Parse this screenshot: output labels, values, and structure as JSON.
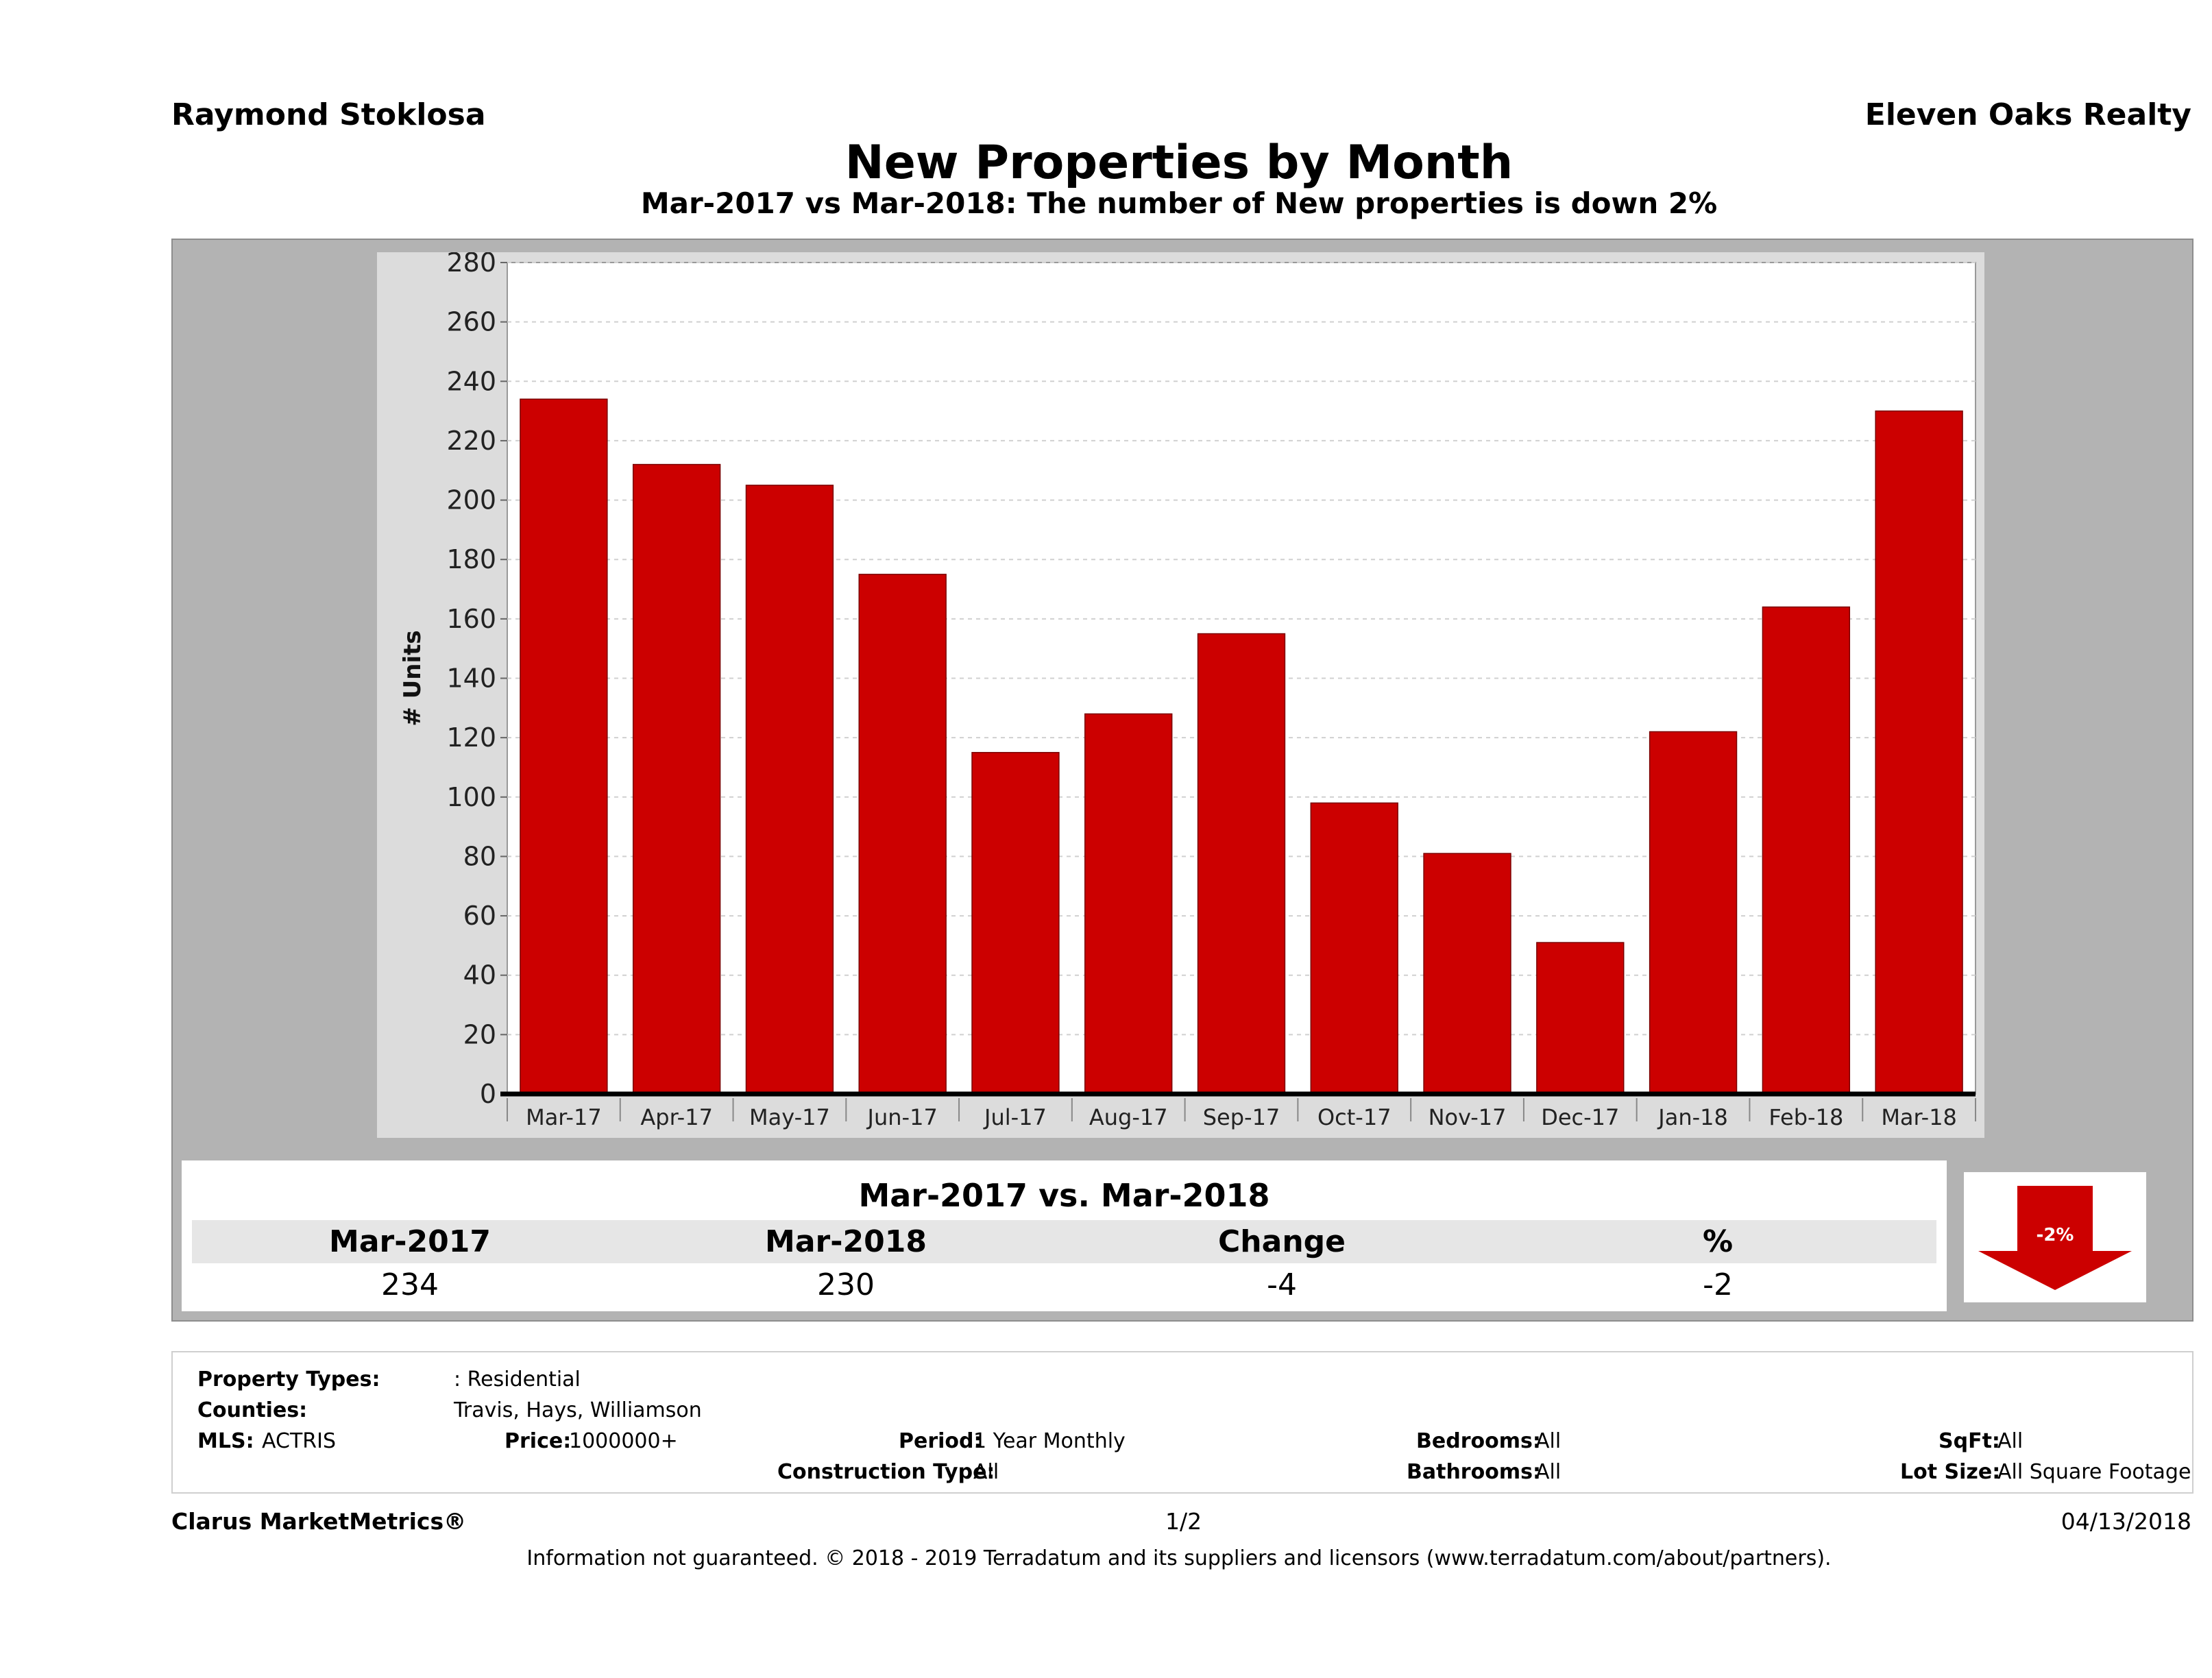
{
  "header": {
    "agent": "Raymond Stoklosa",
    "company": "Eleven Oaks Realty",
    "title": "New Properties by Month",
    "subtitle": "Mar-2017 vs Mar-2018: The number of New  properties is down 2%"
  },
  "chart_data": {
    "type": "bar",
    "categories": [
      "Mar-17",
      "Apr-17",
      "May-17",
      "Jun-17",
      "Jul-17",
      "Aug-17",
      "Sep-17",
      "Oct-17",
      "Nov-17",
      "Dec-17",
      "Jan-18",
      "Feb-18",
      "Mar-18"
    ],
    "values": [
      234,
      212,
      205,
      175,
      115,
      128,
      155,
      98,
      81,
      51,
      122,
      164,
      230
    ],
    "ylabel": "# Units",
    "ylim": [
      0,
      280
    ],
    "yticks": [
      0,
      20,
      40,
      60,
      80,
      100,
      120,
      140,
      160,
      180,
      200,
      220,
      240,
      260,
      280
    ],
    "bar_color": "#cc0000",
    "grid": true
  },
  "summary": {
    "heading": "Mar-2017 vs. Mar-2018",
    "columns": [
      "Mar-2017",
      "Mar-2018",
      "Change",
      "%"
    ],
    "values": [
      "234",
      "230",
      "-4",
      "-2"
    ],
    "badge": "-2%",
    "badge_direction": "down",
    "badge_color": "#cc0000"
  },
  "filters": {
    "property_types_label": "Property Types:",
    "property_types_value": ": Residential",
    "counties_label": "Counties:",
    "counties_value": "Travis, Hays, Williamson",
    "mls_label": "MLS:",
    "mls_value": "ACTRIS",
    "price_label": "Price:",
    "price_value": "1000000+",
    "period_label": "Period:",
    "period_value": "1 Year Monthly",
    "construction_label": "Construction Type:",
    "construction_value": "All",
    "bedrooms_label": "Bedrooms:",
    "bedrooms_value": "All",
    "bathrooms_label": "Bathrooms:",
    "bathrooms_value": "All",
    "sqft_label": "SqFt:",
    "sqft_value": "All",
    "lot_label": "Lot Size:",
    "lot_value": "All Square Footage"
  },
  "footer": {
    "brand": "Clarus MarketMetrics®",
    "page": "1/2",
    "date": "04/13/2018",
    "disclaimer": "Information not guaranteed. © 2018 - 2019 Terradatum and its suppliers and licensors (www.terradatum.com/about/partners)."
  }
}
